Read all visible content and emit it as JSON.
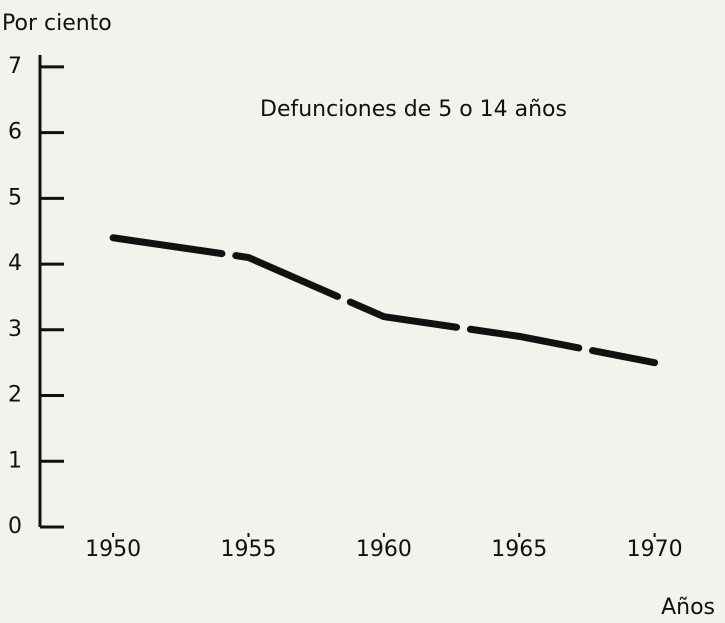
{
  "chart_data": {
    "type": "line",
    "title": "Defunciones de 5 o 14 años",
    "y_label": "Por ciento",
    "x_label": "Años",
    "x": [
      1950,
      1955,
      1960,
      1965,
      1970
    ],
    "series": [
      {
        "name": null,
        "color": "#111111",
        "values": [
          4.4,
          4.1,
          3.2,
          2.9,
          2.5
        ]
      }
    ],
    "xlim": [
      1947.3,
      1972.6
    ],
    "xticks": [
      1950,
      1955,
      1960,
      1965,
      1970
    ],
    "ylim": [
      0,
      7.5
    ],
    "yticks": [
      0,
      1,
      2,
      3,
      4,
      5,
      6,
      7
    ]
  }
}
